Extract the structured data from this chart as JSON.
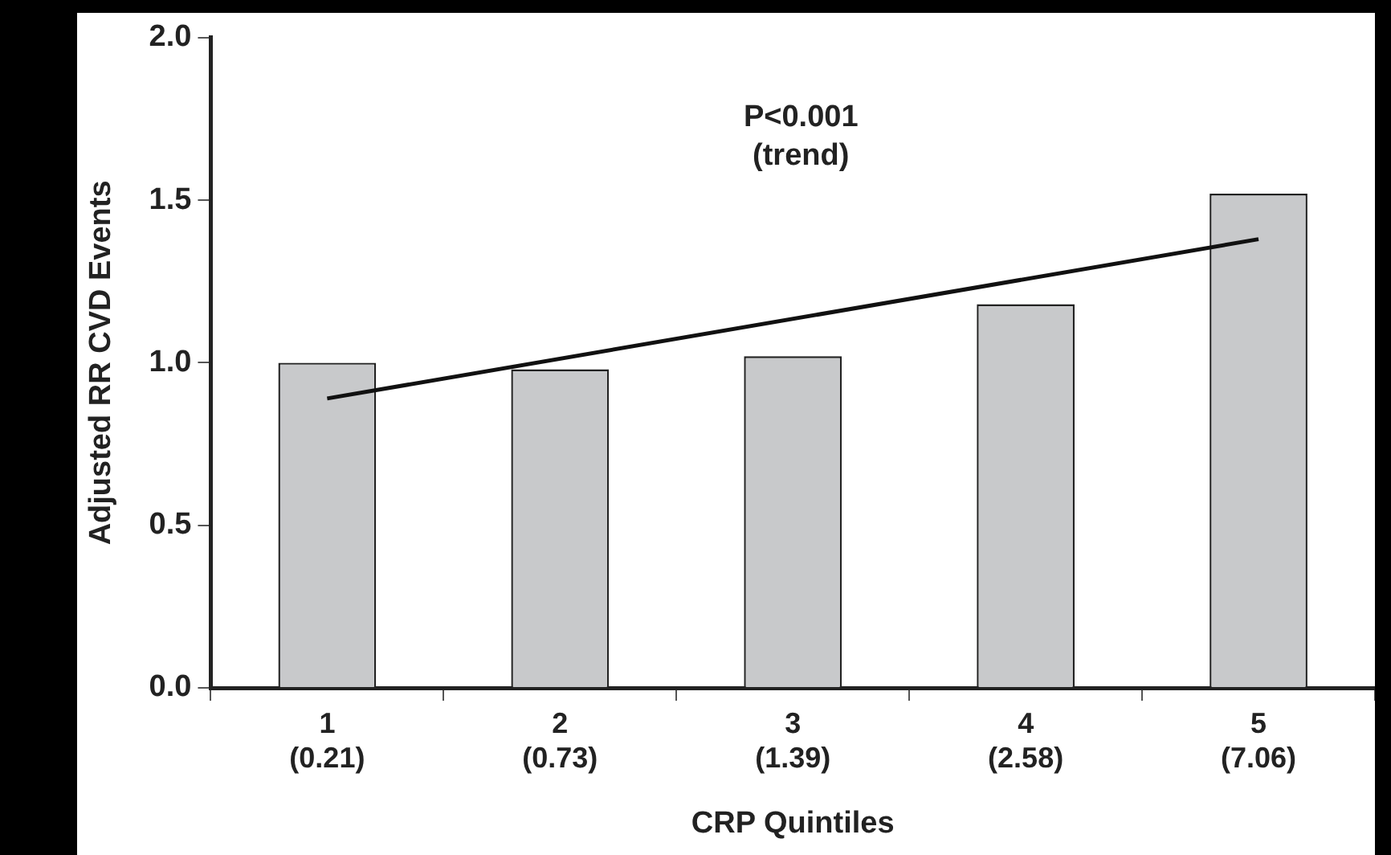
{
  "chart_data": {
    "type": "bar",
    "xlabel": "CRP Quintiles",
    "ylabel": "Adjusted RR CVD Events",
    "categories": [
      "1\n(0.21)",
      "2\n(0.73)",
      "3\n(1.39)",
      "4\n(2.58)",
      "5\n(7.06)"
    ],
    "series": [
      {
        "color": "#c8c9cb",
        "values": [
          1.0,
          0.98,
          1.02,
          1.18,
          1.52
        ]
      },
      {
        "type": "line",
        "color": "#111111",
        "values": [
          0.89,
          null,
          null,
          null,
          1.38
        ]
      }
    ],
    "ylim": [
      0,
      2
    ],
    "yticks": [
      {
        "value": 0,
        "label": "0.0"
      },
      {
        "value": 0.5,
        "label": "0.5"
      },
      {
        "value": 1,
        "label": "1.0"
      },
      {
        "value": 1.5,
        "label": "1.5"
      },
      {
        "value": 2,
        "label": "2.0"
      }
    ],
    "annotations": [
      "P<0.001\n(trend)"
    ],
    "grid": false,
    "legend": false,
    "marker": "none",
    "line_style": "solid"
  }
}
